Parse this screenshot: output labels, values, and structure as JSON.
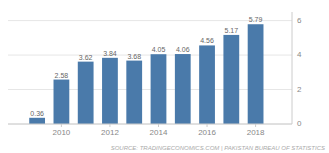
{
  "chart_data": {
    "type": "bar",
    "x": [
      2009,
      2010,
      2011,
      2012,
      2013,
      2014,
      2015,
      2016,
      2017,
      2018
    ],
    "values": [
      0.36,
      2.58,
      3.62,
      3.84,
      3.68,
      4.05,
      4.06,
      4.56,
      5.17,
      5.79
    ],
    "color": "#4a7aaa",
    "xlim": [
      2007.8,
      2019.5
    ],
    "xticks": [
      2010,
      2012,
      2014,
      2016,
      2018
    ],
    "ylim": [
      0,
      6.5
    ],
    "yticks": [
      0,
      2,
      4,
      6
    ],
    "grid": true,
    "data_labels": true,
    "annotations": [
      "SOURCE: TRADINGECONOMICS.COM | PAKISTAN BUREAU OF STATISTICS"
    ]
  }
}
